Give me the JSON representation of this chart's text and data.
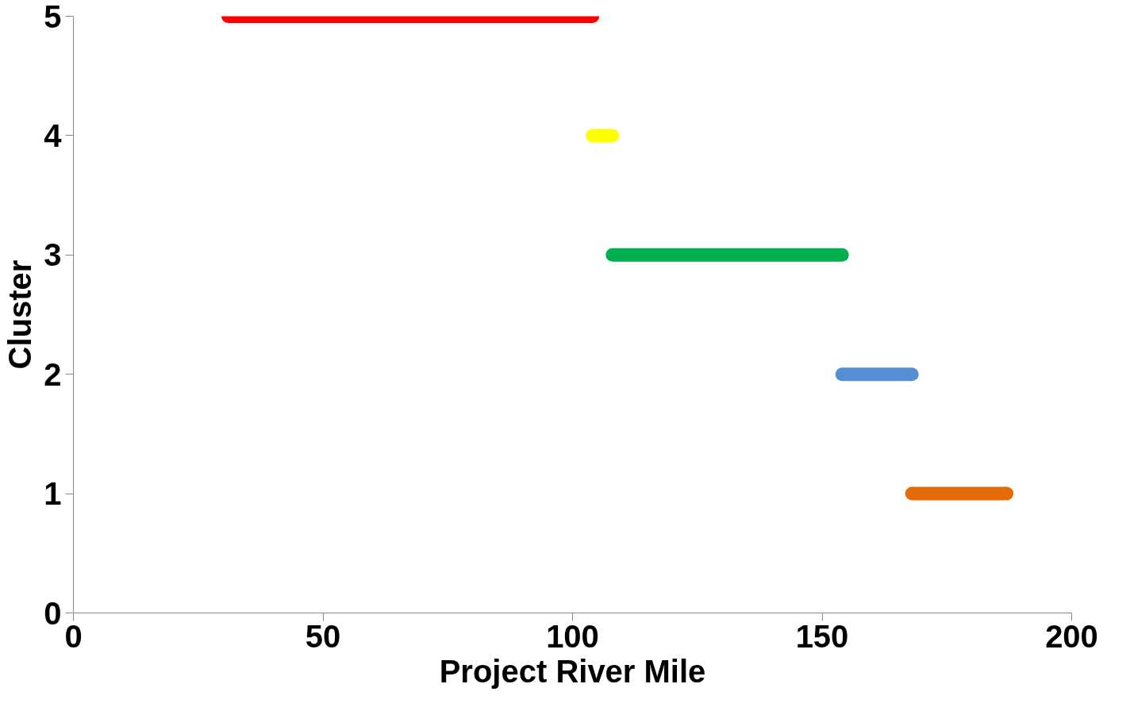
{
  "chart_data": {
    "type": "line",
    "xlabel": "Project River Mile",
    "ylabel": "Cluster",
    "xlim": [
      0,
      200
    ],
    "ylim": [
      0,
      5
    ],
    "xticks": [
      0,
      50,
      100,
      150,
      200
    ],
    "yticks": [
      0,
      1,
      2,
      3,
      4,
      5
    ],
    "grid": false,
    "marker": "none",
    "line_style": "solid",
    "series": [
      {
        "color": "#ff0000",
        "x": [
          31,
          104
        ],
        "values": [
          5,
          5
        ]
      },
      {
        "color": "#ffff00",
        "x": [
          104,
          108
        ],
        "values": [
          4,
          4
        ]
      },
      {
        "color": "#00b050",
        "x": [
          108,
          154
        ],
        "values": [
          3,
          3
        ]
      },
      {
        "color": "#558ed5",
        "x": [
          154,
          168
        ],
        "values": [
          2,
          2
        ]
      },
      {
        "color": "#e36c09",
        "x": [
          168,
          187
        ],
        "values": [
          1,
          1
        ]
      }
    ]
  }
}
